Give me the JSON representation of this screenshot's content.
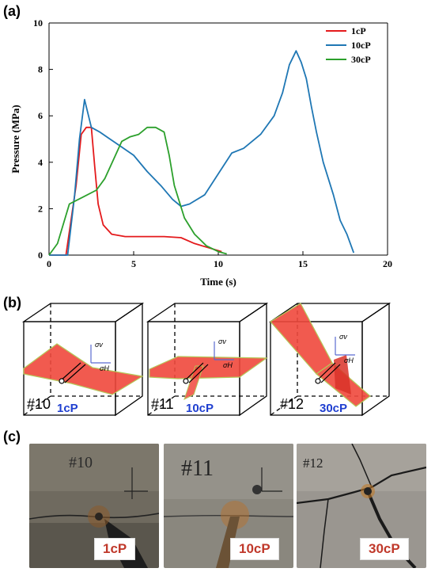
{
  "panels": {
    "a": "(a)",
    "b": "(b)",
    "c": "(c)"
  },
  "chart_data": {
    "type": "line",
    "xlabel": "Time (s)",
    "ylabel": "Pressure (MPa)",
    "xlim": [
      0,
      20
    ],
    "ylim": [
      0,
      10
    ],
    "xticks": [
      0,
      5,
      10,
      15,
      20
    ],
    "yticks": [
      0,
      2,
      4,
      6,
      8,
      10
    ],
    "grid": false,
    "legend_position": "top-right",
    "series": [
      {
        "name": "1cP",
        "color": "#e41a1c",
        "x": [
          0,
          1.0,
          1.6,
          1.9,
          2.2,
          2.5,
          2.7,
          2.9,
          3.2,
          3.7,
          4.5,
          5.5,
          6.8,
          7.8,
          8.6,
          9.5,
          10.2
        ],
        "y": [
          0,
          0,
          3.0,
          5.2,
          5.5,
          5.5,
          3.8,
          2.2,
          1.3,
          0.9,
          0.8,
          0.8,
          0.8,
          0.75,
          0.5,
          0.3,
          0.15
        ]
      },
      {
        "name": "10cP",
        "color": "#1f77b4",
        "x": [
          0,
          1.1,
          1.5,
          1.8,
          2.1,
          2.5,
          3.0,
          3.6,
          4.2,
          5.0,
          5.8,
          6.6,
          7.3,
          7.8,
          8.3,
          9.2,
          10.0,
          10.8,
          11.5,
          12.5,
          13.3,
          13.8,
          14.2,
          14.6,
          14.9,
          15.2,
          15.5,
          15.8,
          16.2,
          16.8,
          17.2,
          17.6,
          18.0
        ],
        "y": [
          0,
          0,
          2.5,
          5.0,
          6.7,
          5.5,
          5.3,
          5.0,
          4.7,
          4.3,
          3.6,
          3.0,
          2.4,
          2.1,
          2.2,
          2.6,
          3.5,
          4.4,
          4.6,
          5.2,
          6.0,
          7.0,
          8.2,
          8.8,
          8.3,
          7.6,
          6.4,
          5.3,
          4.0,
          2.6,
          1.5,
          0.9,
          0.1
        ]
      },
      {
        "name": "30cP",
        "color": "#2ca02c",
        "x": [
          0,
          0.5,
          1.2,
          2.0,
          2.8,
          3.3,
          3.8,
          4.3,
          4.8,
          5.3,
          5.8,
          6.3,
          6.8,
          7.1,
          7.4,
          7.7,
          8.0,
          8.6,
          9.3,
          10.0,
          10.5
        ],
        "y": [
          0,
          0.5,
          2.2,
          2.5,
          2.8,
          3.3,
          4.1,
          4.9,
          5.1,
          5.2,
          5.5,
          5.5,
          5.3,
          4.3,
          3.0,
          2.3,
          1.6,
          0.9,
          0.4,
          0.15,
          0.05
        ]
      }
    ]
  },
  "cubes": [
    {
      "id": "#10",
      "fluid": "1cP",
      "fluid_color": "#1f3fd0",
      "sv": "σv",
      "sh": "σH"
    },
    {
      "id": "#11",
      "fluid": "10cP",
      "fluid_color": "#1f3fd0",
      "sv": "σv",
      "sh": "σH"
    },
    {
      "id": "#12",
      "fluid": "30cP",
      "fluid_color": "#1f3fd0",
      "sv": "σv",
      "sh": "σH"
    }
  ],
  "photos": [
    {
      "badge": "1cP"
    },
    {
      "badge": "10cP"
    },
    {
      "badge": "30cP"
    }
  ],
  "photo_writing": [
    "#10",
    "#11",
    "#12"
  ]
}
